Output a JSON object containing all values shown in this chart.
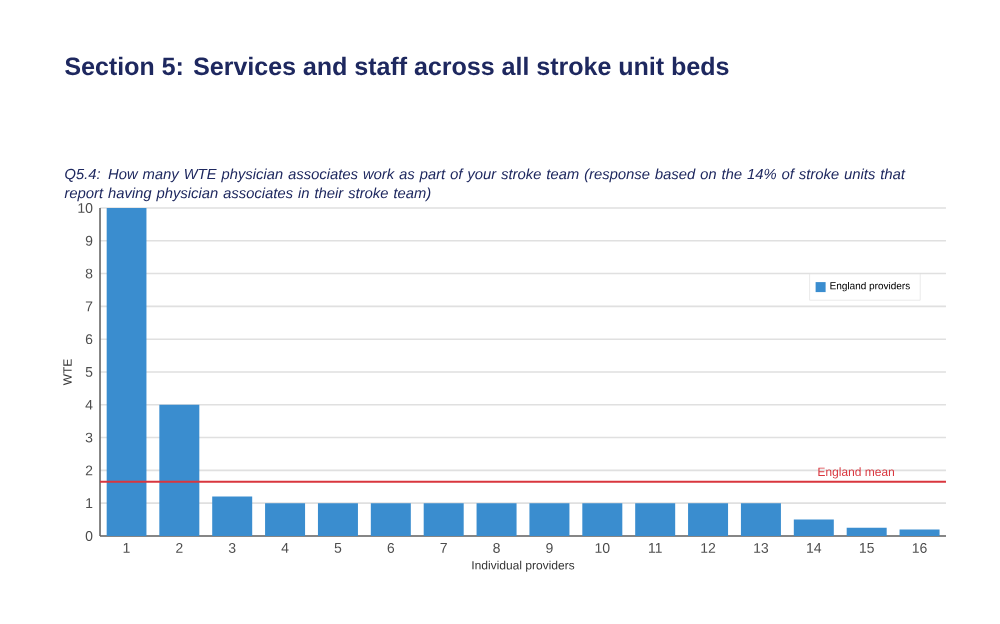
{
  "chart_data": {
    "type": "bar",
    "title": "Section 5: Services and staff across all stroke unit beds",
    "subtitle": "Q5.4: How many WTE physician associates work as part of your stroke team (response based on the 14% of stroke units that report having physician associates in their stroke team)",
    "xlabel": "Individual providers",
    "ylabel": "WTE",
    "categories": [
      "1",
      "2",
      "3",
      "4",
      "5",
      "6",
      "7",
      "8",
      "9",
      "10",
      "11",
      "12",
      "13",
      "14",
      "15",
      "16"
    ],
    "series": [
      {
        "name": "England providers",
        "color": "#3a8dcf",
        "values": [
          10,
          4,
          1.2,
          1,
          1,
          1,
          1,
          1,
          1,
          1,
          1,
          1,
          1,
          0.5,
          0.25,
          0.2
        ]
      }
    ],
    "ylim": [
      0,
      10
    ],
    "yticks": [
      0,
      1,
      2,
      3,
      4,
      5,
      6,
      7,
      8,
      9,
      10
    ],
    "grid": "y",
    "legend": "top right",
    "ref_lines": [
      {
        "axis": "y",
        "value": 1.65,
        "label": "England mean",
        "color": "#d9363e"
      }
    ]
  }
}
